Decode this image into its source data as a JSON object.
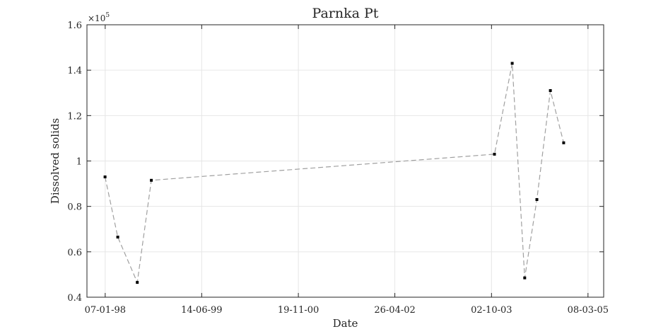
{
  "chart_data": {
    "type": "line",
    "title": "Parnka Pt",
    "xlabel": "Date",
    "ylabel": "Dissolved  solids",
    "y_exponent_label": "×10",
    "y_exponent_power": "5",
    "y_scale_factor": 100000,
    "xlim": [
      "1997-09-30",
      "2005-06-01"
    ],
    "ylim": [
      40000,
      160000
    ],
    "grid": true,
    "x_ticks": [
      {
        "date": "1998-01-07",
        "label": "07-01-98"
      },
      {
        "date": "1999-06-14",
        "label": "14-06-99"
      },
      {
        "date": "2000-11-19",
        "label": "19-11-00"
      },
      {
        "date": "2002-04-26",
        "label": "26-04-02"
      },
      {
        "date": "2003-10-02",
        "label": "02-10-03"
      },
      {
        "date": "2005-03-08",
        "label": "08-03-05"
      }
    ],
    "y_ticks": [
      {
        "value": 40000,
        "label": "0.4"
      },
      {
        "value": 60000,
        "label": "0.6"
      },
      {
        "value": 80000,
        "label": "0.8"
      },
      {
        "value": 100000,
        "label": "1"
      },
      {
        "value": 120000,
        "label": "1.2"
      },
      {
        "value": 140000,
        "label": "1.4"
      },
      {
        "value": 160000,
        "label": "1.6"
      }
    ],
    "series": [
      {
        "line_style": "dashed",
        "line_color": "#a0a0a0",
        "marker_color": "#000000",
        "points": [
          {
            "x": "1998-01-06",
            "y": 93000
          },
          {
            "x": "1998-03-16",
            "y": 66500
          },
          {
            "x": "1998-06-30",
            "y": 46500
          },
          {
            "x": "1998-09-14",
            "y": 91500
          },
          {
            "x": "2003-10-18",
            "y": 103000
          },
          {
            "x": "2004-01-22",
            "y": 143000
          },
          {
            "x": "2004-03-30",
            "y": 48500
          },
          {
            "x": "2004-06-04",
            "y": 83000
          },
          {
            "x": "2004-08-16",
            "y": 131000
          },
          {
            "x": "2004-10-27",
            "y": 108000
          }
        ]
      }
    ]
  }
}
